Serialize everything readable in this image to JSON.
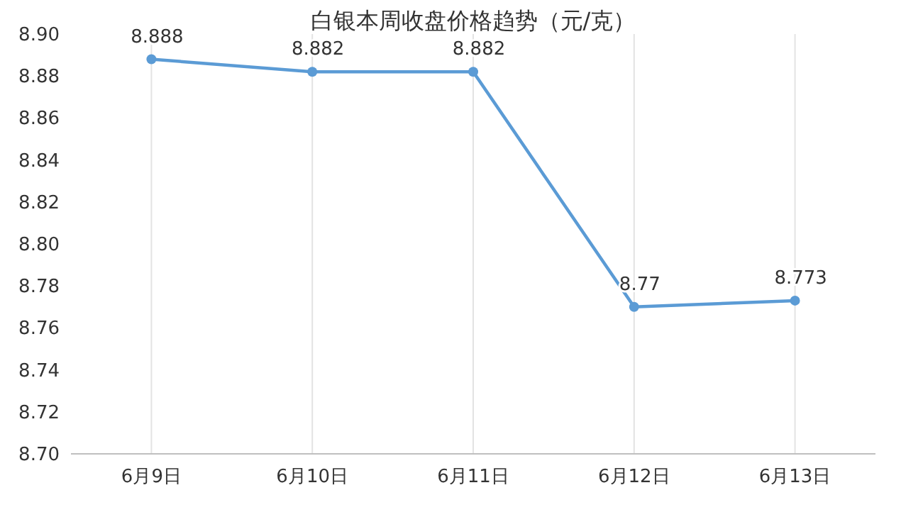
{
  "chart_data": {
    "type": "line",
    "title": "白银本周收盘价格趋势（元/克）",
    "categories": [
      "6月9日",
      "6月10日",
      "6月11日",
      "6月12日",
      "6月13日"
    ],
    "values": [
      8.888,
      8.882,
      8.882,
      8.77,
      8.773
    ],
    "color": "#5b9bd5",
    "marker": "circle",
    "data_labels": true,
    "grid": "x",
    "ylim": [
      8.7,
      8.9
    ],
    "yticks": [
      {
        "value": 8.7,
        "label": "8.70"
      },
      {
        "value": 8.72,
        "label": "8.72"
      },
      {
        "value": 8.74,
        "label": "8.74"
      },
      {
        "value": 8.76,
        "label": "8.76"
      },
      {
        "value": 8.78,
        "label": "8.78"
      },
      {
        "value": 8.8,
        "label": "8.80"
      },
      {
        "value": 8.82,
        "label": "8.82"
      },
      {
        "value": 8.84,
        "label": "8.84"
      },
      {
        "value": 8.86,
        "label": "8.86"
      },
      {
        "value": 8.88,
        "label": "8.88"
      },
      {
        "value": 8.9,
        "label": "8.90"
      }
    ]
  }
}
